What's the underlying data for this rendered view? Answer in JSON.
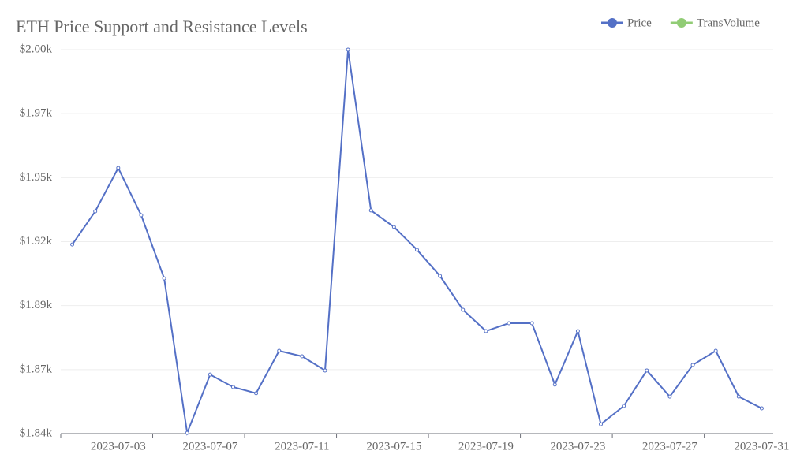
{
  "chart_data": {
    "type": "line",
    "title": "ETH Price Support and Resistance Levels",
    "x": [
      "2023-07-01",
      "2023-07-02",
      "2023-07-03",
      "2023-07-04",
      "2023-07-05",
      "2023-07-06",
      "2023-07-07",
      "2023-07-08",
      "2023-07-09",
      "2023-07-10",
      "2023-07-11",
      "2023-07-12",
      "2023-07-13",
      "2023-07-14",
      "2023-07-15",
      "2023-07-16",
      "2023-07-17",
      "2023-07-18",
      "2023-07-19",
      "2023-07-20",
      "2023-07-21",
      "2023-07-22",
      "2023-07-23",
      "2023-07-24",
      "2023-07-25",
      "2023-07-26",
      "2023-07-27",
      "2023-07-28",
      "2023-07-29",
      "2023-07-30",
      "2023-07-31"
    ],
    "series": [
      {
        "name": "Price",
        "color": "#5470c6",
        "values": [
          1918.8,
          1932.6,
          1950.7,
          1931.0,
          1904.7,
          1840.3,
          1864.6,
          1859.4,
          1856.8,
          1874.5,
          1872.2,
          1866.3,
          2000,
          1933.0,
          1926.1,
          1916.6,
          1905.7,
          1891.6,
          1882.7,
          1886.0,
          1886.0,
          1860.4,
          1882.7,
          1843.9,
          1851.5,
          1866.3,
          1855.4,
          1868.6,
          1874.5,
          1855.4,
          1850.5
        ]
      },
      {
        "name": "TransVolume",
        "color": "#91cc75",
        "values": [
          null,
          null,
          null,
          null,
          null,
          null,
          null,
          null,
          null,
          null,
          null,
          null,
          null,
          null,
          null,
          null,
          null,
          null,
          null,
          null,
          null,
          null,
          null,
          null,
          null,
          null,
          null,
          null,
          null,
          null,
          null
        ]
      }
    ],
    "xticks": [
      "2023-07-03",
      "2023-07-07",
      "2023-07-11",
      "2023-07-15",
      "2023-07-19",
      "2023-07-23",
      "2023-07-27",
      "2023-07-31"
    ],
    "ylim": [
      1840,
      2000
    ],
    "yticks": [
      {
        "value": 1840,
        "label": "$1.84k"
      },
      {
        "value": 1866.67,
        "label": "$1.87k"
      },
      {
        "value": 1893.33,
        "label": "$1.89k"
      },
      {
        "value": 1920,
        "label": "$1.92k"
      },
      {
        "value": 1946.67,
        "label": "$1.95k"
      },
      {
        "value": 1973.33,
        "label": "$1.97k"
      },
      {
        "value": 2000,
        "label": "$2.00k"
      }
    ],
    "grid": true
  }
}
